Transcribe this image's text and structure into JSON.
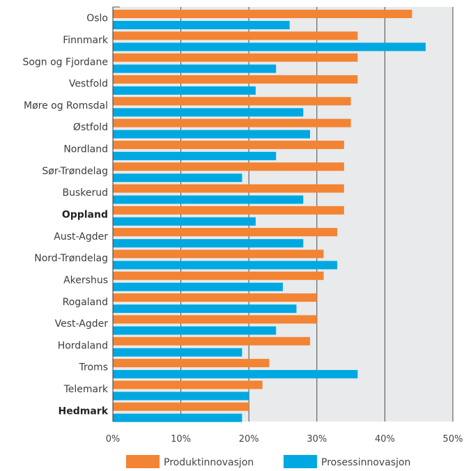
{
  "chart_data": {
    "type": "bar",
    "orientation": "horizontal",
    "title": "",
    "xlabel": "",
    "ylabel": "",
    "xlim": [
      0,
      50
    ],
    "x_tick_labels": [
      "0%",
      "10%",
      "20%",
      "30%",
      "40%",
      "50%"
    ],
    "grid": true,
    "legend_position": "bottom",
    "categories": [
      "Oslo",
      "Finnmark",
      "Sogn og Fjordane",
      "Vestfold",
      "Møre og Romsdal",
      "Østfold",
      "Nordland",
      "Sør-Trøndelag",
      "Buskerud",
      "Oppland",
      "Aust-Agder",
      "Nord-Trøndelag",
      "Akershus",
      "Rogaland",
      "Vest-Agder",
      "Hordaland",
      "Troms",
      "Telemark",
      "Hedmark"
    ],
    "bold_categories": [
      "Oppland",
      "Hedmark"
    ],
    "series": [
      {
        "name": "Produktinnovasjon",
        "color": "#f28434",
        "values": [
          44,
          36,
          36,
          36,
          35,
          35,
          34,
          34,
          34,
          34,
          33,
          31,
          31,
          30,
          30,
          29,
          23,
          22,
          20
        ]
      },
      {
        "name": "Prosessinnovasjon",
        "color": "#00a8e1",
        "values": [
          26,
          46,
          24,
          21,
          28,
          29,
          24,
          19,
          28,
          21,
          28,
          33,
          25,
          27,
          24,
          19,
          36,
          20,
          19
        ]
      }
    ]
  }
}
